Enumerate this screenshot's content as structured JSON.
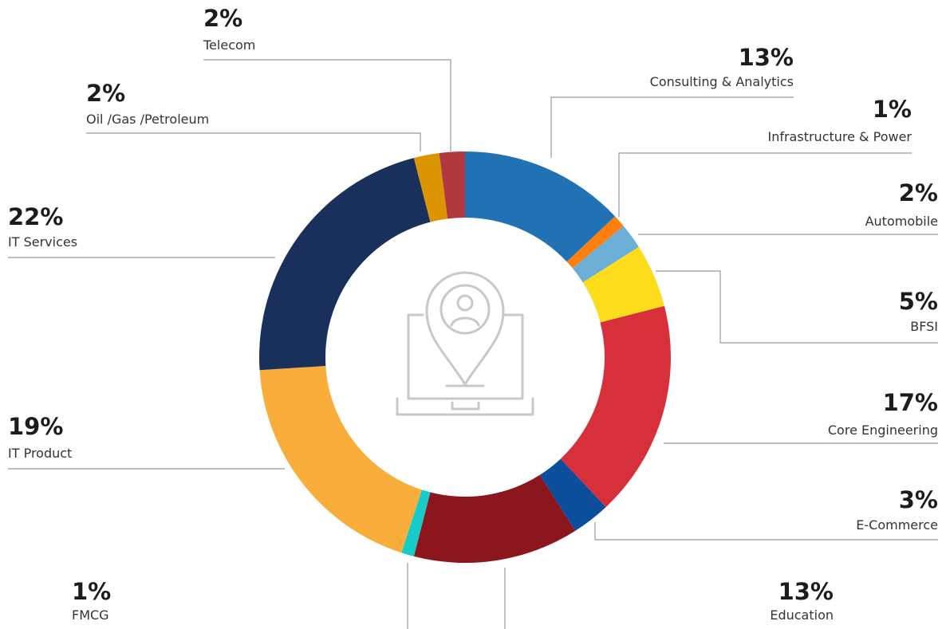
{
  "chart_data": {
    "type": "donut",
    "categories": [
      "Consulting  & Analytics",
      "Infrastructure & Power",
      "Automobile",
      "BFSI",
      "Core Engineering",
      "E-Commerce",
      "Education",
      "FMCG",
      "IT Product",
      "IT Services",
      "Oil /Gas /Petroleum",
      "Telecom"
    ],
    "values": [
      13,
      1,
      2,
      5,
      17,
      3,
      13,
      1,
      19,
      22,
      2,
      2
    ],
    "value_labels": [
      "13%",
      "1%",
      "2%",
      "5%",
      "17%",
      "3%",
      "13%",
      "1%",
      "19%",
      "22%",
      "2%",
      "2%"
    ],
    "colors": [
      "#2171b5",
      "#ff7f0e",
      "#6baed6",
      "#fddc1c",
      "#d7303b",
      "#0b4f9c",
      "#8c161e",
      "#16cbc8",
      "#f9ae3b",
      "#1a305c",
      "#dc9400",
      "#b0393f"
    ]
  }
}
